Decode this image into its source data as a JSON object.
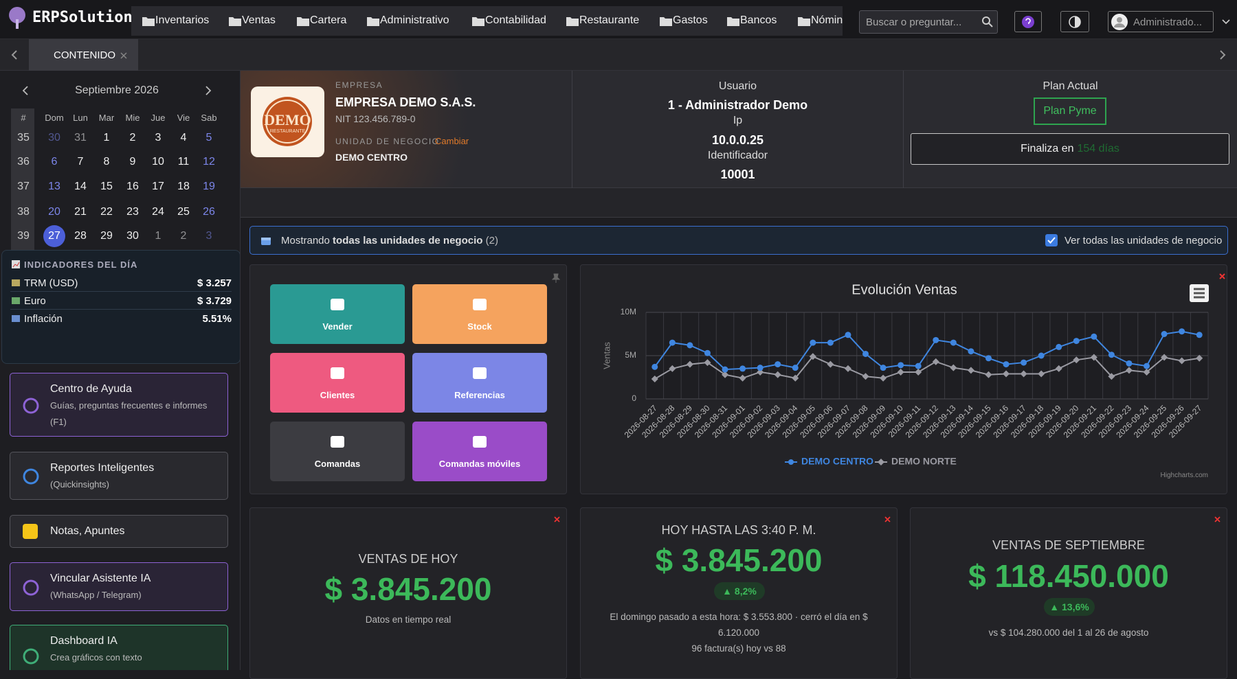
{
  "topbar": {
    "brand": "ERPSolution",
    "menu": [
      "Inventarios",
      "Ventas",
      "Cartera",
      "Administrativo",
      "Contabilidad",
      "Restaurante",
      "Gastos",
      "Bancos",
      "Nómina"
    ],
    "search": "Buscar o preguntar...",
    "user": "Administrado..."
  },
  "tabs": [
    "CONTENIDO"
  ],
  "calendar": {
    "title": "Septiembre 2026",
    "headers": [
      "#",
      "Dom",
      "Lun",
      "Mar",
      "Mie",
      "Jue",
      "Vie",
      "Sab"
    ],
    "weeks": [
      {
        "week": 35,
        "days": [
          30,
          31,
          1,
          2,
          3,
          4,
          5
        ]
      },
      {
        "week": 36,
        "days": [
          6,
          7,
          8,
          9,
          10,
          11,
          12
        ]
      },
      {
        "week": 37,
        "days": [
          13,
          14,
          15,
          16,
          17,
          18,
          19
        ]
      },
      {
        "week": 38,
        "days": [
          20,
          21,
          22,
          23,
          24,
          25,
          26
        ]
      },
      {
        "week": 39,
        "days": [
          27,
          28,
          29,
          30,
          1,
          2,
          3
        ]
      }
    ]
  },
  "indicators": {
    "title": "INDICADORES DEL DÍA",
    "items": [
      {
        "label": "TRM (USD)",
        "value": "$ 3.257"
      },
      {
        "label": "Euro",
        "value": "$ 3.729"
      },
      {
        "label": "Inflación",
        "value": "5.51%"
      }
    ]
  },
  "side_cards": [
    {
      "title": "Centro de Ayuda",
      "lines": [
        "Guías, preguntas frecuentes e informes",
        "(F1)"
      ],
      "accent": "#8e63d6"
    },
    {
      "title": "Reportes Inteligentes",
      "lines": [
        "(Quickinsights)"
      ],
      "accent": "#55555c"
    },
    {
      "title": "Notas, Apuntes",
      "accent": "#55555c"
    },
    {
      "title": "Vincular Asistente IA",
      "lines": [
        "(WhatsApp / Telegram)"
      ],
      "accent": "#8e63d6"
    },
    {
      "title": "Dashboard IA",
      "lines": [
        "Crea gráficos con texto"
      ],
      "accent": "#3fae78"
    }
  ],
  "company": {
    "label": "EMPRESA",
    "name": "EMPRESA DEMO S.A.S.",
    "nit": "NIT 123.456.789-0",
    "unit_label": "UNIDAD DE NEGOCIO",
    "change": "Cambiar",
    "unit": "DEMO CENTRO",
    "logo": "DEMO",
    "logo_sub": "RESTAURANTE"
  },
  "session": {
    "user_label": "Usuario",
    "user": "1 - Administrador Demo",
    "ip_label": "Ip",
    "ip": "10.0.0.25",
    "id_label": "Identificador",
    "id": "10001"
  },
  "plan": {
    "label": "Plan Actual",
    "name": "Plan Pyme",
    "ends": "Finaliza en",
    "days": "154 días"
  },
  "units_bar": {
    "prefix": "Mostrando",
    "bold": "todas las unidades de negocio",
    "count": "(2)",
    "toggle": "Ver todas las unidades de negocio"
  },
  "quick_actions": [
    {
      "label": "Vender",
      "color": "#2a9a93"
    },
    {
      "label": "Stock",
      "color": "#f5a35e"
    },
    {
      "label": "Clientes",
      "color": "#ee5a80"
    },
    {
      "label": "Referencias",
      "color": "#7c86e6"
    },
    {
      "label": "Comandas",
      "color": "#3c3c41"
    },
    {
      "label": "Comandas móviles",
      "color": "#9a4cc8"
    }
  ],
  "chart_data": {
    "type": "line",
    "title": "Evolución Ventas",
    "y_label": "Ventas",
    "credits": "Highcharts.com",
    "x": [
      "2026-08-27",
      "2026-08-28",
      "2026-08-29",
      "2026-08-30",
      "2026-08-31",
      "2026-09-01",
      "2026-09-02",
      "2026-09-03",
      "2026-09-04",
      "2026-09-05",
      "2026-09-06",
      "2026-09-07",
      "2026-09-08",
      "2026-09-09",
      "2026-09-10",
      "2026-09-11",
      "2026-09-12",
      "2026-09-13",
      "2026-09-14",
      "2026-09-15",
      "2026-09-16",
      "2026-09-17",
      "2026-09-18",
      "2026-09-19",
      "2026-09-20",
      "2026-09-21",
      "2026-09-22",
      "2026-09-23",
      "2026-09-24",
      "2026-09-25",
      "2026-09-26",
      "2026-09-27"
    ],
    "series": [
      {
        "name": "DEMO CENTRO",
        "color": "#3f86e0",
        "marker": "circle",
        "values": [
          3700000,
          6500000,
          6200000,
          5300000,
          3400000,
          3500000,
          3600000,
          4000000,
          3600000,
          6500000,
          6500000,
          7400000,
          5200000,
          3600000,
          3900000,
          3800000,
          6800000,
          6500000,
          5500000,
          4700000,
          4000000,
          4200000,
          5000000,
          6000000,
          6700000,
          7200000,
          5100000,
          4100000,
          3800000,
          7500000,
          7800000,
          7400000
        ]
      },
      {
        "name": "DEMO NORTE",
        "color": "#9a9aa2",
        "marker": "diamond",
        "values": [
          2300000,
          3500000,
          4000000,
          4200000,
          2800000,
          2400000,
          3100000,
          2800000,
          2400000,
          4900000,
          4000000,
          3500000,
          2600000,
          2400000,
          3100000,
          3100000,
          4300000,
          3600000,
          3300000,
          2800000,
          2900000,
          2900000,
          2900000,
          3500000,
          4500000,
          4800000,
          2600000,
          3300000,
          3100000,
          4800000,
          4400000,
          4700000
        ]
      }
    ],
    "ylim": [
      0,
      10000000
    ],
    "yticks": [
      0,
      {
        "value": 5000000,
        "label": "5M"
      },
      {
        "value": 10000000,
        "label": "10M"
      }
    ],
    "grid": true
  },
  "stats": [
    {
      "title": "VENTAS DE HOY",
      "value": "$ 3.845.200",
      "notes": [
        "Datos en tiempo real"
      ]
    },
    {
      "title": "HOY HASTA LAS 3:40 P. M.",
      "value": "$ 3.845.200",
      "change": "▲ 8,2%",
      "notes": [
        "El domingo pasado a esta hora: $ 3.553.800 · cerró el día en $ 6.120.000",
        "96 factura(s) hoy vs 88"
      ]
    },
    {
      "title": "VENTAS DE SEPTIEMBRE",
      "value": "$ 118.450.000",
      "change": "▲ 13,6%",
      "notes": [
        "vs $ 104.280.000 del 1 al 26 de agosto"
      ]
    }
  ]
}
